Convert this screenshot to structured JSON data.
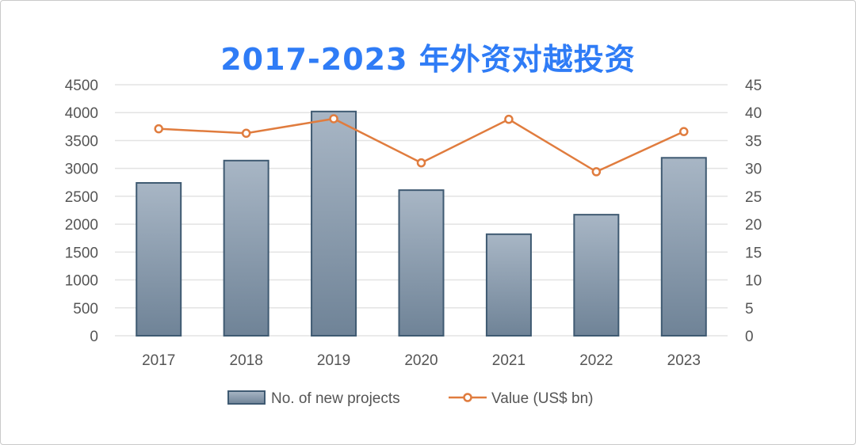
{
  "chart_data": {
    "type": "bar",
    "title": "2017-2023 年外资对越投资",
    "categories": [
      "2017",
      "2018",
      "2019",
      "2020",
      "2021",
      "2022",
      "2023"
    ],
    "series": [
      {
        "name": "No. of new projects",
        "type": "bar",
        "axis": "left",
        "values": [
          2740,
          3140,
          4020,
          2610,
          1820,
          2170,
          3190
        ]
      },
      {
        "name": "Value (US$ bn)",
        "type": "line",
        "axis": "right",
        "values": [
          37.1,
          36.3,
          38.9,
          31.0,
          38.8,
          29.4,
          36.6
        ]
      }
    ],
    "ylim_left": [
      0,
      4500
    ],
    "yticks_left": [
      "0",
      "500",
      "1000",
      "1500",
      "2000",
      "2500",
      "3000",
      "3500",
      "4000",
      "4500"
    ],
    "ylim_right": [
      0,
      45
    ],
    "yticks_right": [
      "0",
      "5",
      "10",
      "15",
      "20",
      "25",
      "30",
      "35",
      "40",
      "45"
    ],
    "grid": true,
    "legend": "bottom",
    "colors": {
      "bar_top": "#a8b6c5",
      "bar_bottom": "#6f8397",
      "bar_stroke": "#3f5a72",
      "line": "#e07c3e",
      "title": "#2f7cf6",
      "grid": "#e3e3e3"
    }
  }
}
